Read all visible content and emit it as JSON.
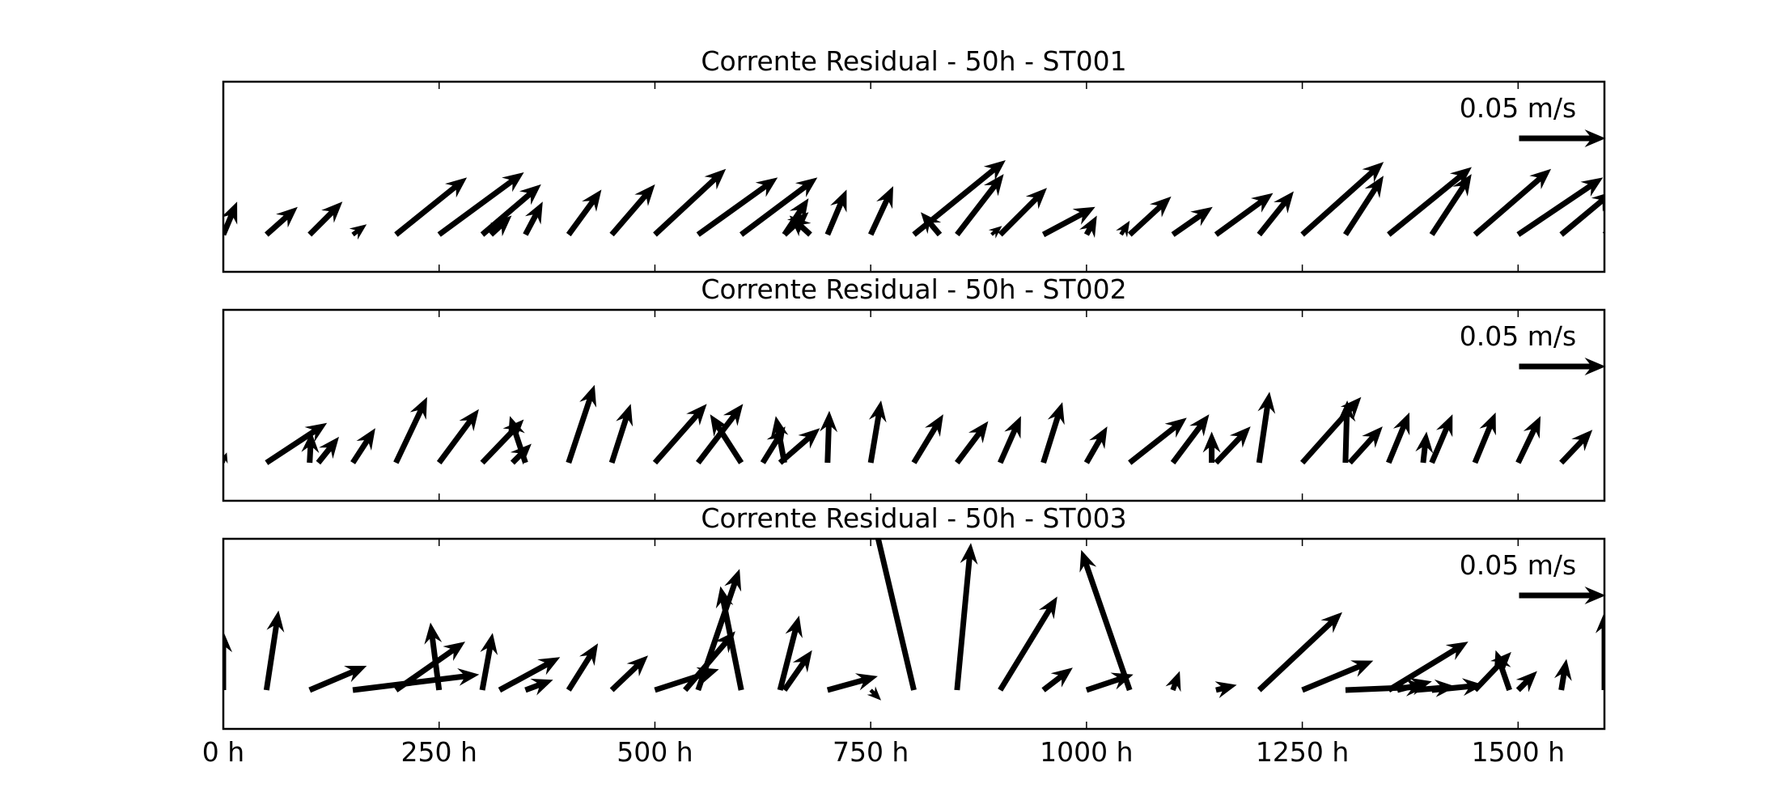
{
  "chart_data": [
    {
      "type": "quiver",
      "title": "Corrente Residual - 50h - ST001",
      "key": {
        "label": "0.05 m/s",
        "u": 0.05,
        "v": 0
      },
      "xlim": [
        0,
        1600
      ],
      "xticks": [
        0,
        250,
        500,
        750,
        1000,
        1250,
        1500
      ],
      "tick_labels": [
        "0 h",
        "250 h",
        "500 h",
        "750 h",
        "1000 h",
        "1250 h",
        "1500 h"
      ],
      "x": [
        0,
        50,
        100,
        150,
        200,
        250,
        300,
        350,
        400,
        450,
        500,
        550,
        600,
        650,
        700,
        750,
        800,
        850,
        900,
        950,
        1000,
        1050,
        1100,
        1150,
        1200,
        1250,
        1300,
        1350,
        1400,
        1450,
        1500,
        1550,
        1600,
        650,
        680,
        830,
        890,
        310,
        1040
      ],
      "u": [
        0.008,
        0.018,
        0.019,
        0.008,
        0.041,
        0.049,
        0.034,
        0.01,
        0.019,
        0.025,
        0.041,
        0.046,
        0.044,
        0.014,
        0.011,
        0.013,
        0.053,
        0.027,
        0.027,
        0.03,
        0.006,
        0.024,
        0.023,
        0.033,
        0.02,
        0.047,
        0.022,
        0.048,
        0.023,
        0.044,
        0.049,
        0.03,
        0.012,
        0.014,
        -0.012,
        -0.011,
        0.006,
        0.012,
        0.005
      ],
      "v": [
        0.019,
        0.016,
        0.019,
        0.006,
        0.033,
        0.036,
        0.029,
        0.019,
        0.026,
        0.029,
        0.038,
        0.033,
        0.033,
        0.021,
        0.026,
        0.028,
        0.043,
        0.035,
        0.027,
        0.016,
        0.011,
        0.022,
        0.016,
        0.024,
        0.025,
        0.042,
        0.034,
        0.039,
        0.035,
        0.038,
        0.033,
        0.025,
        0.01,
        0.013,
        0.011,
        0.013,
        0.005,
        0.011,
        0.008
      ]
    },
    {
      "type": "quiver",
      "title": "Corrente Residual - 50h - ST002",
      "key": {
        "label": "0.05 m/s",
        "u": 0.05,
        "v": 0
      },
      "xlim": [
        0,
        1600
      ],
      "xticks": [
        0,
        250,
        500,
        750,
        1000,
        1250,
        1500
      ],
      "tick_labels": [
        "0 h",
        "250 h",
        "500 h",
        "750 h",
        "1000 h",
        "1250 h",
        "1500 h"
      ],
      "x": [
        0,
        50,
        100,
        150,
        200,
        250,
        300,
        350,
        400,
        450,
        500,
        550,
        600,
        650,
        700,
        750,
        800,
        850,
        900,
        950,
        1000,
        1050,
        1100,
        1150,
        1200,
        1250,
        1300,
        1350,
        1400,
        1450,
        1500,
        1550,
        110,
        335,
        625,
        645,
        1145,
        1305,
        1390
      ],
      "u": [
        0.002,
        0.035,
        0.001,
        0.013,
        0.018,
        0.023,
        0.024,
        -0.009,
        0.015,
        0.011,
        0.03,
        0.026,
        -0.018,
        -0.005,
        0.001,
        0.006,
        0.017,
        0.018,
        0.012,
        0.011,
        0.012,
        0.033,
        0.021,
        0.02,
        0.006,
        0.034,
        0.001,
        0.012,
        0.012,
        0.012,
        0.013,
        0.018,
        0.012,
        0.011,
        0.013,
        0.023,
        0.0,
        0.019,
        0.002
      ],
      "v": [
        0.006,
        0.023,
        0.018,
        0.02,
        0.038,
        0.031,
        0.025,
        0.027,
        0.045,
        0.034,
        0.034,
        0.034,
        0.028,
        0.027,
        0.03,
        0.036,
        0.028,
        0.024,
        0.027,
        0.035,
        0.021,
        0.026,
        0.028,
        0.021,
        0.041,
        0.038,
        0.036,
        0.029,
        0.028,
        0.029,
        0.027,
        0.019,
        0.015,
        0.011,
        0.021,
        0.02,
        0.018,
        0.021,
        0.018
      ]
    },
    {
      "type": "quiver",
      "title": "Corrente Residual - 50h - ST003",
      "key": {
        "label": "0.05 m/s",
        "u": 0.05,
        "v": 0
      },
      "xlim": [
        0,
        1600
      ],
      "xticks": [
        0,
        250,
        500,
        750,
        1000,
        1250,
        1500
      ],
      "tick_labels": [
        "0 h",
        "250 h",
        "500 h",
        "750 h",
        "1000 h",
        "1250 h",
        "1500 h"
      ],
      "x": [
        0,
        50,
        100,
        150,
        200,
        250,
        300,
        350,
        400,
        450,
        500,
        550,
        600,
        650,
        700,
        750,
        800,
        850,
        900,
        950,
        1000,
        1050,
        1100,
        1150,
        1200,
        1250,
        1300,
        1350,
        1400,
        1450,
        1500,
        1550,
        1600,
        645,
        320,
        1380,
        535,
        1490,
        1360
      ],
      "u": [
        0.0,
        0.007,
        0.033,
        0.073,
        0.04,
        -0.005,
        0.006,
        0.016,
        0.017,
        0.021,
        0.037,
        0.024,
        -0.012,
        0.016,
        0.029,
        0.006,
        -0.025,
        0.008,
        0.033,
        0.017,
        0.027,
        -0.028,
        0.004,
        0.012,
        0.048,
        0.041,
        0.047,
        0.046,
        0.03,
        0.021,
        0.011,
        0.003,
        0.0,
        0.011,
        0.035,
        0.024,
        0.029,
        -0.008,
        0.02
      ],
      "v": [
        0.034,
        0.046,
        0.014,
        0.009,
        0.028,
        0.039,
        0.033,
        0.006,
        0.027,
        0.02,
        0.012,
        0.07,
        0.06,
        0.023,
        0.008,
        -0.006,
        0.106,
        0.085,
        0.054,
        0.013,
        0.009,
        0.081,
        0.011,
        0.003,
        0.045,
        0.017,
        0.002,
        0.028,
        0.003,
        0.022,
        0.011,
        0.018,
        0.045,
        0.043,
        0.019,
        0.002,
        0.034,
        0.023,
        0.005
      ]
    }
  ]
}
